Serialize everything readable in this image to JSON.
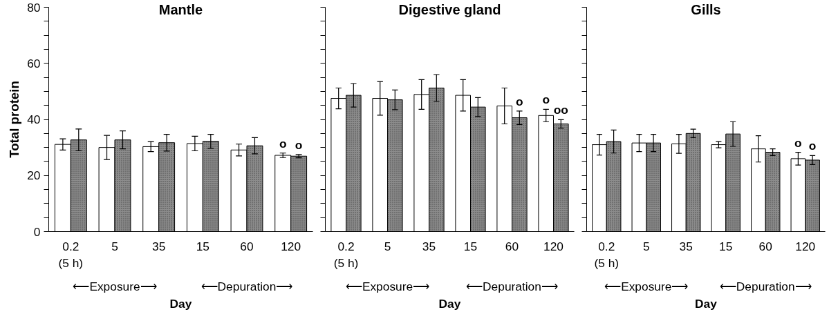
{
  "chart_data": [
    {
      "type": "bar",
      "title": "Mantle",
      "ylabel": "Total protein",
      "xlabel": "Day",
      "categories": [
        "0.2\n(5 h)",
        "5",
        "35",
        "15",
        "60",
        "120"
      ],
      "series": [
        {
          "color": "#ffffff",
          "values": [
            31.1,
            30.0,
            30.3,
            31.4,
            29.1,
            27.2
          ],
          "errors": [
            2.0,
            4.3,
            1.8,
            2.6,
            2.1,
            0.8
          ]
        },
        {
          "color": "#8c8c8c",
          "values": [
            32.7,
            32.7,
            31.7,
            32.2,
            30.6,
            26.9
          ],
          "errors": [
            3.9,
            3.2,
            3.0,
            2.5,
            2.9,
            0.6
          ]
        }
      ],
      "ylim": [
        0,
        80
      ],
      "yticks": [
        0,
        {
          "value": 5,
          "label": null
        },
        {
          "value": 10,
          "label": null
        },
        {
          "value": 15,
          "label": null
        },
        20,
        {
          "value": 25,
          "label": null
        },
        {
          "value": 30,
          "label": null
        },
        {
          "value": 35,
          "label": null
        },
        40,
        {
          "value": 45,
          "label": null
        },
        {
          "value": 50,
          "label": null
        },
        {
          "value": 55,
          "label": null
        },
        60,
        {
          "value": 65,
          "label": null
        },
        {
          "value": 70,
          "label": null
        },
        {
          "value": 75,
          "label": null
        },
        80
      ],
      "annotations": [
        {
          "text": "o",
          "x": "120",
          "y": 27.2
        },
        {
          "text": "o",
          "x": "120",
          "y": 26.9
        },
        "⟵Exposure⟶",
        "⟵Depuration⟶"
      ]
    },
    {
      "type": "bar",
      "title": "Digestive gland",
      "xlabel": "Day",
      "categories": [
        "0.2\n(5 h)",
        "5",
        "35",
        "15",
        "60",
        "120"
      ],
      "series": [
        {
          "color": "#ffffff",
          "values": [
            47.5,
            47.5,
            48.9,
            48.6,
            44.8,
            41.4
          ],
          "errors": [
            3.7,
            6.0,
            5.3,
            5.6,
            6.4,
            2.2
          ]
        },
        {
          "color": "#8c8c8c",
          "values": [
            48.6,
            47.0,
            51.2,
            44.4,
            40.6,
            38.4
          ],
          "errors": [
            4.2,
            3.5,
            4.8,
            3.4,
            2.4,
            1.5
          ]
        }
      ],
      "ylim": [
        0,
        80
      ],
      "yticks": [
        0,
        {
          "value": 5,
          "label": null
        },
        {
          "value": 10,
          "label": null
        },
        {
          "value": 15,
          "label": null
        },
        20,
        {
          "value": 25,
          "label": null
        },
        {
          "value": 30,
          "label": null
        },
        {
          "value": 35,
          "label": null
        },
        40,
        {
          "value": 45,
          "label": null
        },
        {
          "value": 50,
          "label": null
        },
        {
          "value": 55,
          "label": null
        },
        60,
        {
          "value": 65,
          "label": null
        },
        {
          "value": 70,
          "label": null
        },
        {
          "value": 75,
          "label": null
        },
        80
      ],
      "tick_labels": "x",
      "annotations": [
        {
          "text": "o",
          "x": "60",
          "y": 40.6
        },
        {
          "text": "o",
          "x": "120",
          "y": 41.4
        },
        {
          "text": "oo",
          "x": "120",
          "y": 38.4
        },
        "⟵Exposure⟶",
        "⟵Depuration⟶"
      ]
    },
    {
      "type": "bar",
      "title": "Gills",
      "xlabel": "Day",
      "categories": [
        "0.2\n(5 h)",
        "5",
        "35",
        "15",
        "60",
        "120"
      ],
      "series": [
        {
          "color": "#ffffff",
          "values": [
            31.0,
            31.6,
            31.3,
            31.0,
            29.5,
            26.0
          ],
          "errors": [
            3.7,
            3.1,
            3.4,
            1.1,
            4.7,
            2.3
          ]
        },
        {
          "color": "#8c8c8c",
          "values": [
            32.1,
            31.6,
            35.0,
            34.8,
            28.3,
            25.5
          ],
          "errors": [
            4.1,
            3.1,
            1.5,
            4.4,
            1.2,
            1.6
          ]
        }
      ],
      "ylim": [
        0,
        80
      ],
      "yticks": [
        0,
        {
          "value": 5,
          "label": null
        },
        {
          "value": 10,
          "label": null
        },
        {
          "value": 15,
          "label": null
        },
        20,
        {
          "value": 25,
          "label": null
        },
        {
          "value": 30,
          "label": null
        },
        {
          "value": 35,
          "label": null
        },
        40,
        {
          "value": 45,
          "label": null
        },
        {
          "value": 50,
          "label": null
        },
        {
          "value": 55,
          "label": null
        },
        60,
        {
          "value": 65,
          "label": null
        },
        {
          "value": 70,
          "label": null
        },
        {
          "value": 75,
          "label": null
        },
        80
      ],
      "tick_labels": "x",
      "annotations": [
        {
          "text": "o",
          "x": "120",
          "y": 26.0
        },
        {
          "text": "o",
          "x": "120",
          "y": 25.5
        },
        "⟵Exposure⟶",
        "⟵Depuration⟶"
      ]
    }
  ]
}
